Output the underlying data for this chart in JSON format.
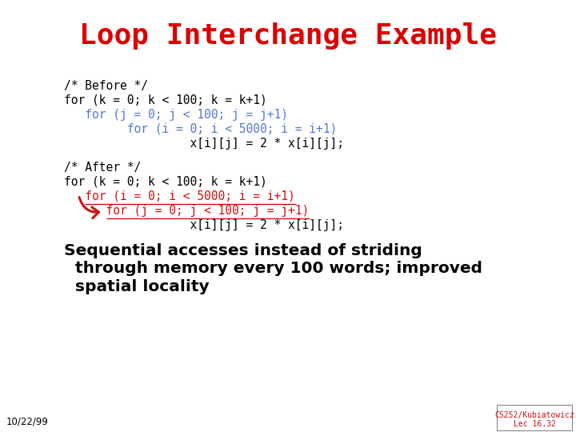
{
  "title": "Loop Interchange Example",
  "title_color": "#dd0000",
  "title_fontsize": 26,
  "bg_color": "#ffffff",
  "code_color_black": "#000000",
  "code_color_blue": "#5577cc",
  "code_color_red": "#cc1111",
  "code_fontsize": 10.5,
  "summary_fontsize": 14.5,
  "date": "10/22/99",
  "course": "CS252/Kubiatowicz",
  "lecture": "Lec 16.32"
}
